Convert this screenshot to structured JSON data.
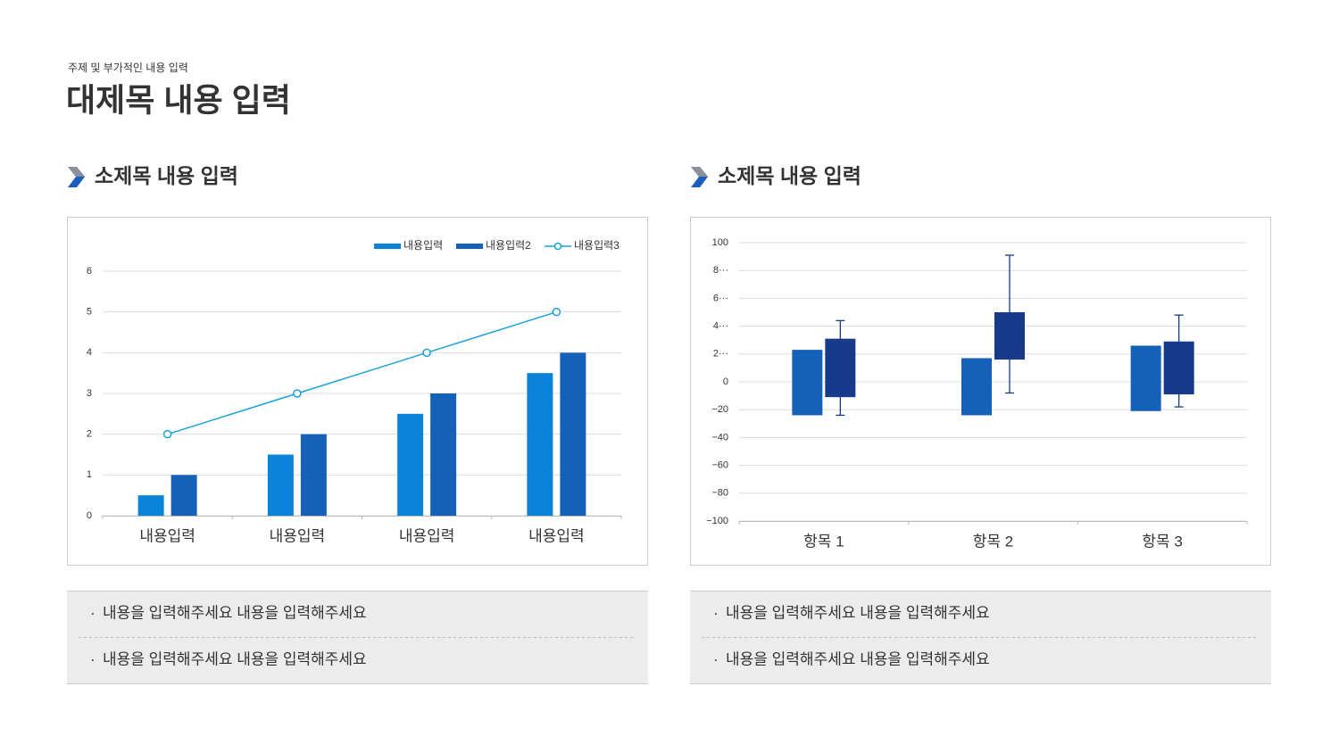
{
  "header": {
    "subtitle": "주제 및 부가적인 내용 입력",
    "title": "대제목 내용 입력"
  },
  "panels": [
    {
      "heading": "소제목 내용 입력",
      "bullets": [
        "내용을 입력해주세요 내용을 입력해주세요",
        "내용을 입력해주세요 내용을 입력해주세요"
      ]
    },
    {
      "heading": "소제목 내용 입력",
      "bullets": [
        "내용을 입력해주세요 내용을 입력해주세요",
        "내용을 입력해주세요 내용을 입력해주세요"
      ]
    }
  ],
  "chart_data": [
    {
      "type": "bar",
      "categories": [
        "내용입력",
        "내용입력",
        "내용입력",
        "내용입력"
      ],
      "series": [
        {
          "name": "내용입력",
          "color": "#0a84d8",
          "values": [
            0.5,
            1.5,
            2.5,
            3.5
          ]
        },
        {
          "name": "내용입력2",
          "color": "#1560b8",
          "values": [
            1,
            2,
            3,
            4
          ]
        },
        {
          "name": "내용입력3",
          "color": "#17a2d8",
          "type": "line",
          "values": [
            2,
            3,
            4,
            5
          ]
        }
      ],
      "ylim": [
        0,
        6
      ],
      "yticks": [
        0,
        1,
        2,
        3,
        4,
        5,
        6
      ],
      "grid": true,
      "legend": "top-right"
    },
    {
      "type": "range",
      "categories": [
        "항목 1",
        "항목 2",
        "항목 3"
      ],
      "series": [
        {
          "color": "#1560b8",
          "low": [
            -24,
            -24,
            -21
          ],
          "high": [
            23,
            17,
            26
          ]
        },
        {
          "color": "#173a8a",
          "low": [
            -11,
            16,
            -9
          ],
          "high": [
            31,
            50,
            29
          ],
          "whisker_low": [
            -24,
            -8,
            -18
          ],
          "whisker_high": [
            44,
            91,
            48
          ]
        }
      ],
      "ylim": [
        -100,
        100
      ],
      "yticks": [
        {
          "value": -100,
          "label": "−100"
        },
        {
          "value": -80,
          "label": "−80"
        },
        {
          "value": -60,
          "label": "−60"
        },
        {
          "value": -40,
          "label": "−40"
        },
        {
          "value": -20,
          "label": "−20"
        },
        0,
        {
          "value": 20,
          "label": "2···"
        },
        {
          "value": 40,
          "label": "4···"
        },
        {
          "value": 60,
          "label": "6···"
        },
        {
          "value": 80,
          "label": "8···"
        },
        100
      ],
      "grid": true
    }
  ]
}
